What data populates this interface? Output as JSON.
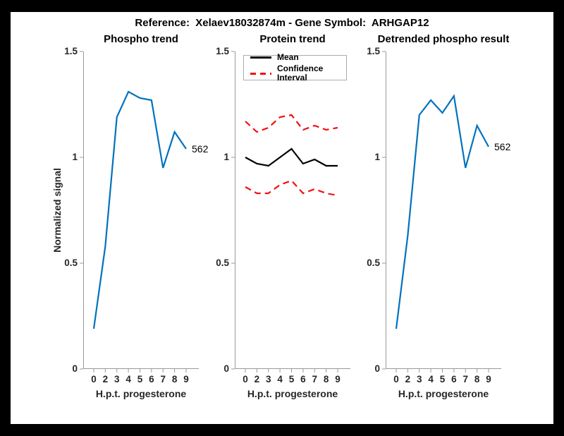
{
  "title": "Reference:  Xelaev18032874m - Gene Symbol:  ARHGAP12",
  "colors": {
    "blue": "#0072BD",
    "red": "#f11010",
    "black": "#000000",
    "axis": "#999999",
    "tick_label": "#262626"
  },
  "axes": {
    "ylabel": "Normalized signal",
    "xlabel": "H.p.t. progesterone",
    "xtick_labels": [
      "0",
      "2",
      "3",
      "4",
      "5",
      "6",
      "7",
      "8",
      "9"
    ],
    "ytick_labels": [
      "0",
      "0.5",
      "1",
      "1.5"
    ],
    "ytick_values": [
      0,
      0.5,
      1,
      1.5
    ],
    "ylim": [
      0,
      1.5
    ],
    "grid": false
  },
  "chart_data": [
    {
      "type": "line",
      "title": "Phospho trend",
      "xlabel": "H.p.t. progesterone",
      "ylabel": "Normalized signal",
      "categories": [
        "0",
        "2",
        "3",
        "4",
        "5",
        "6",
        "7",
        "8",
        "9"
      ],
      "ylim": [
        0,
        1.5
      ],
      "end_label": "562",
      "series": [
        {
          "name": "562",
          "color": "blue",
          "style": "solid",
          "values": [
            0.19,
            0.58,
            1.19,
            1.31,
            1.28,
            1.27,
            0.95,
            1.12,
            1.04
          ]
        }
      ]
    },
    {
      "type": "line",
      "title": "Protein trend",
      "xlabel": "H.p.t. progesterone",
      "ylabel": "",
      "categories": [
        "0",
        "2",
        "3",
        "4",
        "5",
        "6",
        "7",
        "8",
        "9"
      ],
      "ylim": [
        0,
        1.5
      ],
      "legend_position": "northwest",
      "legend": [
        {
          "label": "Mean",
          "color": "black",
          "style": "solid"
        },
        {
          "label": "Confidence Interval",
          "color": "red",
          "style": "dashed"
        }
      ],
      "series": [
        {
          "name": "Mean",
          "color": "black",
          "style": "solid",
          "values": [
            1.0,
            0.97,
            0.96,
            1.0,
            1.04,
            0.97,
            0.99,
            0.96,
            0.96
          ]
        },
        {
          "name": "Confidence Interval upper",
          "color": "red",
          "style": "dashed",
          "values": [
            1.17,
            1.12,
            1.14,
            1.19,
            1.2,
            1.13,
            1.15,
            1.13,
            1.14
          ]
        },
        {
          "name": "Confidence Interval lower",
          "color": "red",
          "style": "dashed",
          "values": [
            0.86,
            0.83,
            0.83,
            0.87,
            0.89,
            0.83,
            0.85,
            0.83,
            0.82
          ]
        }
      ]
    },
    {
      "type": "line",
      "title": "Detrended phospho result",
      "xlabel": "H.p.t. progesterone",
      "ylabel": "",
      "categories": [
        "0",
        "2",
        "3",
        "4",
        "5",
        "6",
        "7",
        "8",
        "9"
      ],
      "ylim": [
        0,
        1.5
      ],
      "end_label": "562",
      "series": [
        {
          "name": "562",
          "color": "blue",
          "style": "solid",
          "values": [
            0.19,
            0.63,
            1.2,
            1.27,
            1.21,
            1.29,
            0.95,
            1.15,
            1.05
          ]
        }
      ]
    }
  ]
}
